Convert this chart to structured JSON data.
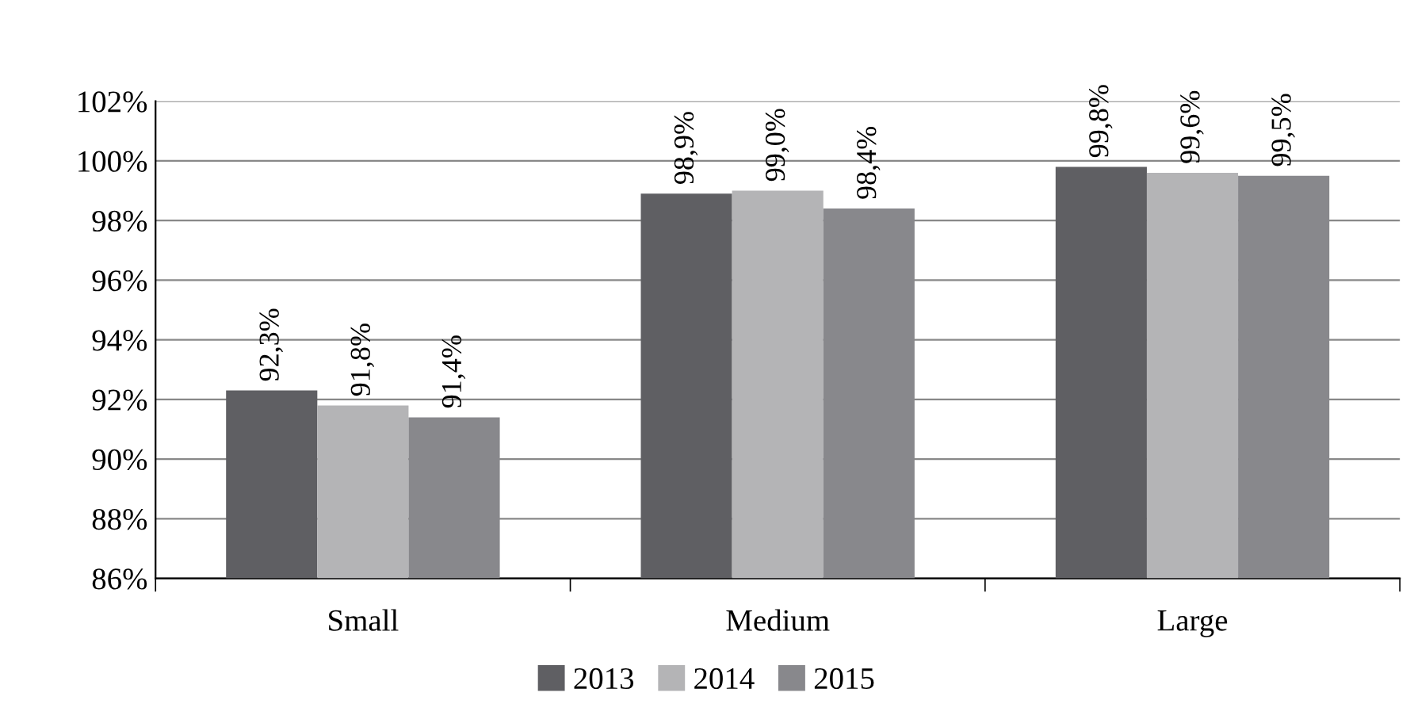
{
  "chart_data": {
    "type": "bar",
    "categories": [
      "Small",
      "Medium",
      "Large"
    ],
    "series": [
      {
        "name": "2013",
        "color": "#5f5f63",
        "values": [
          92.3,
          98.9,
          99.8
        ],
        "value_labels": [
          "92,3%",
          "98,9%",
          "99,8%"
        ]
      },
      {
        "name": "2014",
        "color": "#b4b4b6",
        "values": [
          91.8,
          99.0,
          99.6
        ],
        "value_labels": [
          "91,8%",
          "99,0%",
          "99,6%"
        ]
      },
      {
        "name": "2015",
        "color": "#88888c",
        "values": [
          91.4,
          98.4,
          99.5
        ],
        "value_labels": [
          "91,4%",
          "98,4%",
          "99,5%"
        ]
      }
    ],
    "ylim": [
      86,
      102
    ],
    "yticks": [
      {
        "value": 86,
        "label": "86%"
      },
      {
        "value": 88,
        "label": "88%"
      },
      {
        "value": 90,
        "label": "90%"
      },
      {
        "value": 92,
        "label": "92%"
      },
      {
        "value": 94,
        "label": "94%"
      },
      {
        "value": 96,
        "label": "96%"
      },
      {
        "value": 98,
        "label": "98%"
      },
      {
        "value": 100,
        "label": "100%"
      },
      {
        "value": 102,
        "label": "102%"
      }
    ],
    "grid": "y",
    "legend": "bottom"
  }
}
